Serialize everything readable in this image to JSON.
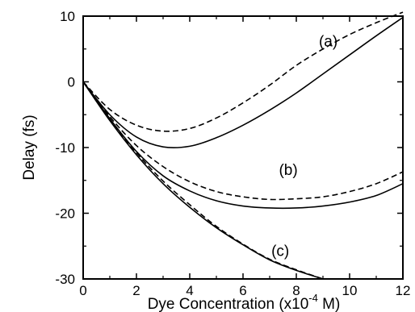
{
  "chart_data": {
    "type": "line",
    "title": "",
    "xlabel_main": "Dye Concentration (x10",
    "xlabel_exp": "-4",
    "xlabel_tail": " M)",
    "ylabel": "Delay (fs)",
    "xlim": [
      0,
      12
    ],
    "ylim": [
      -30,
      10
    ],
    "xticks": [
      0,
      2,
      4,
      6,
      8,
      10,
      12
    ],
    "yticks": [
      10,
      0,
      -10,
      -20,
      -30
    ],
    "grid": false,
    "legend": "none",
    "series": [
      {
        "style": "dashed",
        "x": [
          0,
          1,
          2,
          3,
          4,
          5,
          6,
          7,
          8,
          9,
          10,
          11,
          12
        ],
        "y": [
          0,
          -4.2,
          -6.6,
          -7.5,
          -7.1,
          -5.5,
          -3.2,
          -0.5,
          2.5,
          5.0,
          7.2,
          9.0,
          10.6
        ]
      },
      {
        "style": "solid",
        "x": [
          0,
          1,
          2,
          3,
          4,
          5,
          6,
          7,
          8,
          9,
          10,
          11,
          12
        ],
        "y": [
          0,
          -5.0,
          -8.4,
          -9.9,
          -9.8,
          -8.5,
          -6.6,
          -4.3,
          -1.7,
          1.2,
          4.1,
          7.0,
          9.8
        ]
      },
      {
        "style": "dashed",
        "x": [
          0,
          1,
          2,
          3,
          4,
          5,
          6,
          7,
          8,
          9,
          10,
          11,
          12
        ],
        "y": [
          0,
          -5.3,
          -9.7,
          -12.9,
          -15.2,
          -16.7,
          -17.5,
          -17.9,
          -17.8,
          -17.5,
          -16.7,
          -15.5,
          -13.7
        ]
      },
      {
        "style": "solid",
        "x": [
          0,
          1,
          2,
          3,
          4,
          5,
          6,
          7,
          8,
          9,
          10,
          11,
          12
        ],
        "y": [
          0,
          -5.6,
          -10.6,
          -14.3,
          -16.6,
          -18.1,
          -18.9,
          -19.2,
          -19.2,
          -18.9,
          -18.3,
          -17.3,
          -15.5
        ]
      },
      {
        "style": "dashed",
        "x": [
          0,
          1,
          2,
          3,
          4,
          5,
          6,
          7,
          8,
          9
        ],
        "y": [
          0,
          -5.8,
          -10.8,
          -15.1,
          -18.7,
          -22.0,
          -24.7,
          -27.0,
          -28.6,
          -30
        ]
      },
      {
        "style": "solid",
        "x": [
          0,
          1,
          2,
          3,
          4,
          5,
          6,
          7,
          8,
          9
        ],
        "y": [
          0,
          -5.9,
          -11.1,
          -15.5,
          -19.1,
          -22.2,
          -24.8,
          -27.1,
          -28.7,
          -30
        ]
      }
    ],
    "annotations": [
      {
        "text": "(a)",
        "x": 9.2,
        "y": 5.4
      },
      {
        "text": "(b)",
        "x": 7.7,
        "y": -14.2
      },
      {
        "text": "(c)",
        "x": 7.4,
        "y": -26.5
      }
    ]
  }
}
